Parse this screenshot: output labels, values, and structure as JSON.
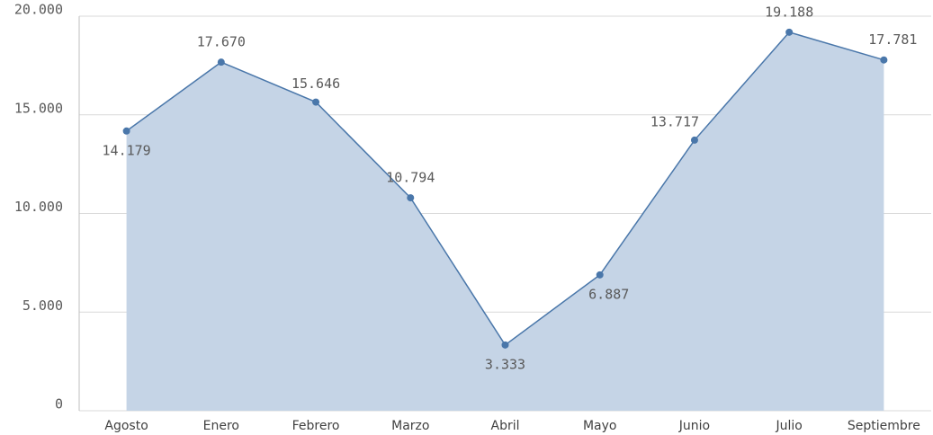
{
  "chart_data": {
    "type": "area",
    "categories": [
      "Agosto",
      "Enero",
      "Febrero",
      "Marzo",
      "Abril",
      "Mayo",
      "Junio",
      "Julio",
      "Septiembre"
    ],
    "values": [
      14179,
      17670,
      15646,
      10794,
      3333,
      6887,
      13717,
      19188,
      17781
    ],
    "value_labels": [
      "14.179",
      "17.670",
      "15.646",
      "10.794",
      "3.333",
      "6.887",
      "13.717",
      "19.188",
      "17.781"
    ],
    "color": "#4a77aa",
    "fill": "#c5d4e6",
    "ylim": [
      0,
      20000
    ],
    "yticks": [
      0,
      {
        "value": 5000,
        "label": "5.000"
      },
      {
        "value": 10000,
        "label": "10.000"
      },
      {
        "value": 15000,
        "label": "15.000"
      },
      {
        "value": 20000,
        "label": "20.000"
      }
    ],
    "grid": true
  }
}
